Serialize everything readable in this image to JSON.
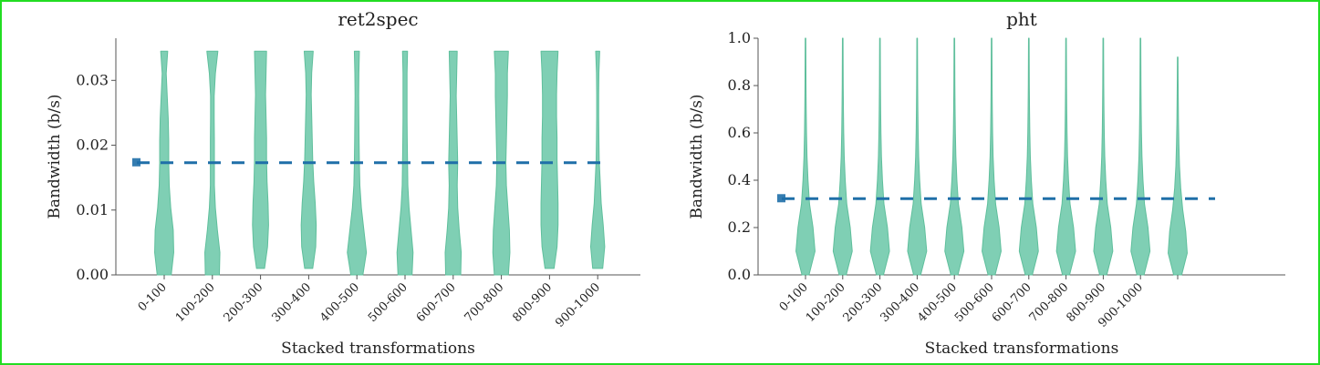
{
  "theme": {
    "violin_fill": "#7fcfb4",
    "violin_edge": "#5fbf9c",
    "mean_line": "#1f6fa8",
    "axis": "#555555",
    "border": "#22dd22"
  },
  "chart_data": [
    {
      "type": "violin",
      "title": "ret2spec",
      "xlabel": "Stacked transformations",
      "ylabel": "Bandwidth (b/s)",
      "categories": [
        "0-100",
        "100-200",
        "200-300",
        "300-400",
        "400-500",
        "500-600",
        "600-700",
        "700-800",
        "800-900",
        "900-1000"
      ],
      "yticks": [
        "0.00",
        "0.01",
        "0.02",
        "0.03"
      ],
      "ytick_values": [
        0,
        0.01,
        0.02,
        0.03
      ],
      "ylim": [
        0,
        0.0365
      ],
      "violins": [
        {
          "min": 0.0,
          "max": 0.0345,
          "profile": [
            0.7,
            0.95,
            0.9,
            0.65,
            0.5,
            0.45,
            0.45,
            0.4,
            0.3,
            0.2,
            0.35
          ]
        },
        {
          "min": 0.0,
          "max": 0.0345,
          "profile": [
            0.7,
            0.75,
            0.5,
            0.3,
            0.2,
            0.2,
            0.2,
            0.18,
            0.18,
            0.3,
            0.55
          ]
        },
        {
          "min": 0.001,
          "max": 0.0345,
          "profile": [
            0.4,
            0.7,
            0.8,
            0.75,
            0.65,
            0.6,
            0.6,
            0.55,
            0.5,
            0.55,
            0.6
          ]
        },
        {
          "min": 0.001,
          "max": 0.0345,
          "profile": [
            0.4,
            0.7,
            0.75,
            0.65,
            0.5,
            0.4,
            0.35,
            0.3,
            0.25,
            0.3,
            0.45
          ]
        },
        {
          "min": 0.0,
          "max": 0.0345,
          "profile": [
            0.6,
            0.95,
            0.7,
            0.45,
            0.3,
            0.25,
            0.22,
            0.2,
            0.18,
            0.2,
            0.25
          ]
        },
        {
          "min": 0.0,
          "max": 0.0345,
          "profile": [
            0.7,
            0.8,
            0.6,
            0.4,
            0.28,
            0.25,
            0.22,
            0.2,
            0.2,
            0.2,
            0.25
          ]
        },
        {
          "min": 0.0,
          "max": 0.0345,
          "profile": [
            0.75,
            0.8,
            0.6,
            0.45,
            0.4,
            0.45,
            0.4,
            0.35,
            0.3,
            0.35,
            0.4
          ]
        },
        {
          "min": 0.0,
          "max": 0.0345,
          "profile": [
            0.7,
            0.85,
            0.8,
            0.65,
            0.5,
            0.45,
            0.5,
            0.55,
            0.6,
            0.6,
            0.7
          ]
        },
        {
          "min": 0.001,
          "max": 0.0345,
          "profile": [
            0.45,
            0.75,
            0.85,
            0.85,
            0.8,
            0.75,
            0.75,
            0.7,
            0.7,
            0.75,
            0.85
          ]
        },
        {
          "min": 0.001,
          "max": 0.0345,
          "profile": [
            0.5,
            0.7,
            0.55,
            0.35,
            0.25,
            0.15,
            0.12,
            0.1,
            0.1,
            0.12,
            0.2
          ]
        }
      ],
      "mean_line": 0.0173
    },
    {
      "type": "violin",
      "title": "pht",
      "xlabel": "Stacked transformations",
      "ylabel": "Bandwidth (b/s)",
      "categories": [
        "0-100",
        "100-200",
        "200-300",
        "300-400",
        "400-500",
        "500-600",
        "600-700",
        "700-800",
        "800-900",
        "900-1000",
        ""
      ],
      "yticks": [
        "0.0",
        "0.2",
        "0.4",
        "0.6",
        "0.8",
        "1.0"
      ],
      "ytick_values": [
        0,
        0.2,
        0.4,
        0.6,
        0.8,
        1.0
      ],
      "ylim": [
        0,
        1.0
      ],
      "violins": [
        {
          "min": 0.0,
          "max": 1.0,
          "profile": [
            0.35,
            0.95,
            0.75,
            0.4,
            0.25,
            0.15,
            0.1,
            0.07,
            0.05,
            0.04,
            0.03
          ]
        },
        {
          "min": 0.0,
          "max": 1.0,
          "profile": [
            0.35,
            0.95,
            0.75,
            0.4,
            0.25,
            0.15,
            0.1,
            0.07,
            0.05,
            0.04,
            0.03
          ]
        },
        {
          "min": 0.0,
          "max": 1.0,
          "profile": [
            0.35,
            0.95,
            0.75,
            0.4,
            0.25,
            0.15,
            0.1,
            0.07,
            0.05,
            0.04,
            0.03
          ]
        },
        {
          "min": 0.0,
          "max": 1.0,
          "profile": [
            0.35,
            0.95,
            0.75,
            0.4,
            0.25,
            0.15,
            0.1,
            0.07,
            0.05,
            0.04,
            0.03
          ]
        },
        {
          "min": 0.0,
          "max": 1.0,
          "profile": [
            0.35,
            0.95,
            0.75,
            0.4,
            0.25,
            0.15,
            0.1,
            0.07,
            0.05,
            0.04,
            0.03
          ]
        },
        {
          "min": 0.0,
          "max": 1.0,
          "profile": [
            0.35,
            0.95,
            0.75,
            0.4,
            0.25,
            0.15,
            0.1,
            0.07,
            0.05,
            0.04,
            0.03
          ]
        },
        {
          "min": 0.0,
          "max": 1.0,
          "profile": [
            0.35,
            0.95,
            0.75,
            0.4,
            0.25,
            0.15,
            0.1,
            0.07,
            0.05,
            0.04,
            0.03
          ]
        },
        {
          "min": 0.0,
          "max": 1.0,
          "profile": [
            0.35,
            0.95,
            0.75,
            0.4,
            0.25,
            0.15,
            0.1,
            0.07,
            0.05,
            0.04,
            0.03
          ]
        },
        {
          "min": 0.0,
          "max": 1.0,
          "profile": [
            0.35,
            0.95,
            0.75,
            0.4,
            0.25,
            0.15,
            0.1,
            0.07,
            0.05,
            0.04,
            0.03
          ]
        },
        {
          "min": 0.0,
          "max": 1.0,
          "profile": [
            0.35,
            0.95,
            0.75,
            0.4,
            0.25,
            0.15,
            0.1,
            0.07,
            0.05,
            0.04,
            0.03
          ]
        },
        {
          "min": 0.0,
          "max": 0.92,
          "profile": [
            0.4,
            0.95,
            0.8,
            0.5,
            0.3,
            0.18,
            0.12,
            0.08,
            0.06,
            0.04,
            0.03
          ]
        }
      ],
      "mean_line": 0.322
    }
  ]
}
